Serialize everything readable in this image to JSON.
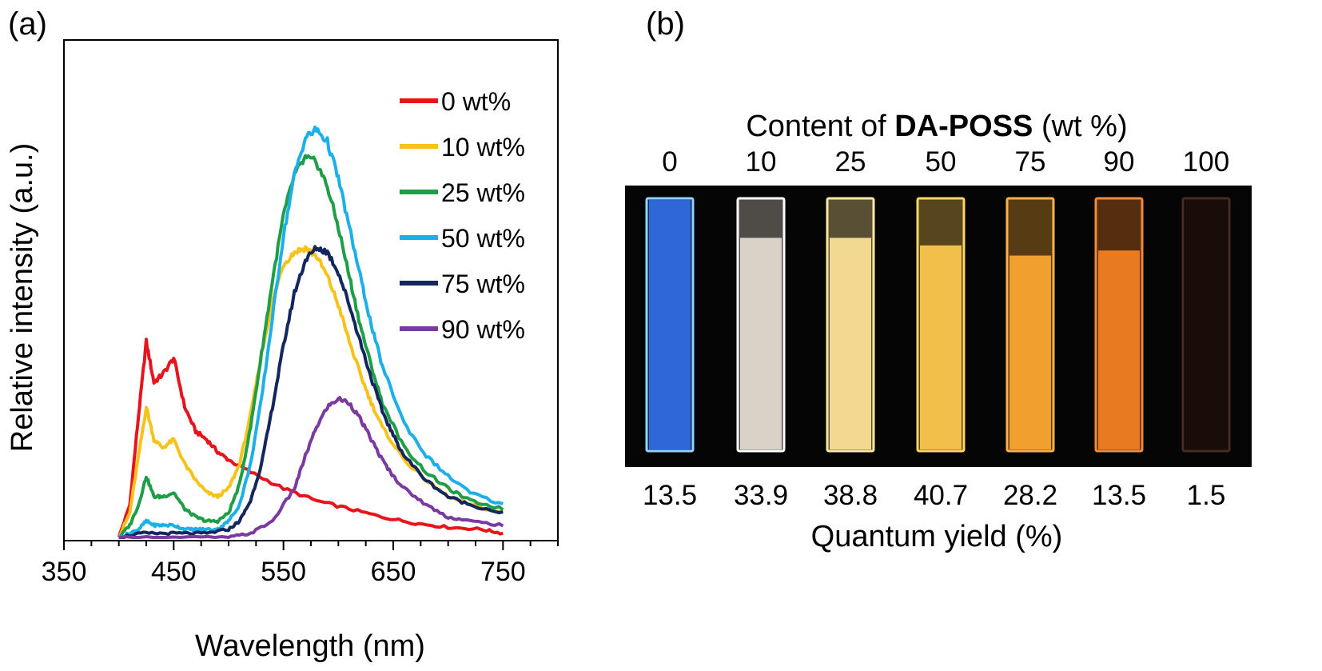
{
  "panel_a": {
    "label": "(a)"
  },
  "panel_b": {
    "label": "(b)",
    "content_label_prefix": "Content of ",
    "content_label_bold": "DA-POSS",
    "content_label_suffix": " (wt %)",
    "quantum_yield_label": "Quantum yield (%)",
    "samples": [
      {
        "content": "0",
        "yield": "13.5",
        "glow": "#2f66d8",
        "frame": "#8fd3ff",
        "fill_fraction": 1.0
      },
      {
        "content": "10",
        "yield": "33.9",
        "glow": "#d9d2c6",
        "frame": "#ffffff",
        "fill_fraction": 0.85
      },
      {
        "content": "25",
        "yield": "38.8",
        "glow": "#f3d98f",
        "frame": "#ffe9a0",
        "fill_fraction": 0.85
      },
      {
        "content": "50",
        "yield": "40.7",
        "glow": "#f2bf4a",
        "frame": "#ffd568",
        "fill_fraction": 0.82
      },
      {
        "content": "75",
        "yield": "28.2",
        "glow": "#f0a02f",
        "frame": "#ffb24a",
        "fill_fraction": 0.78
      },
      {
        "content": "90",
        "yield": "13.5",
        "glow": "#e87a22",
        "frame": "#f28a3a",
        "fill_fraction": 0.8
      },
      {
        "content": "100",
        "yield": "1.5",
        "glow": "#1a0d08",
        "frame": "#4a2a22",
        "fill_fraction": 1.0
      }
    ]
  },
  "chart_data": {
    "type": "line",
    "title": "",
    "xlabel": "Wavelength (nm)",
    "ylabel": "Relative intensity (a.u.)",
    "xlim": [
      350,
      800
    ],
    "ylim": [
      0,
      1.0
    ],
    "xticks": [
      "350",
      "450",
      "550",
      "650",
      "750"
    ],
    "xtick_values": [
      350,
      450,
      550,
      650,
      750
    ],
    "legend_position": "top-right",
    "y_tick_labels": false,
    "series": [
      {
        "name": "0 wt%",
        "color": "#e8141c",
        "x": [
          400,
          410,
          418,
          425,
          432,
          440,
          450,
          460,
          470,
          480,
          490,
          500,
          520,
          550,
          580,
          610,
          640,
          670,
          700,
          730,
          750
        ],
        "y": [
          0.0,
          0.08,
          0.3,
          0.48,
          0.38,
          0.4,
          0.44,
          0.32,
          0.26,
          0.24,
          0.21,
          0.19,
          0.16,
          0.12,
          0.09,
          0.07,
          0.05,
          0.035,
          0.025,
          0.02,
          0.01
        ]
      },
      {
        "name": "10 wt%",
        "color": "#f7c21a",
        "x": [
          400,
          410,
          418,
          425,
          432,
          440,
          450,
          460,
          470,
          480,
          490,
          500,
          510,
          520,
          530,
          540,
          550,
          560,
          570,
          580,
          590,
          600,
          610,
          620,
          630,
          640,
          660,
          680,
          700,
          720,
          750
        ],
        "y": [
          0.0,
          0.06,
          0.2,
          0.32,
          0.24,
          0.22,
          0.24,
          0.18,
          0.14,
          0.11,
          0.1,
          0.12,
          0.18,
          0.3,
          0.45,
          0.58,
          0.67,
          0.7,
          0.71,
          0.69,
          0.64,
          0.57,
          0.48,
          0.4,
          0.33,
          0.27,
          0.19,
          0.14,
          0.1,
          0.08,
          0.06
        ]
      },
      {
        "name": "25 wt%",
        "color": "#1e9e46",
        "x": [
          400,
          410,
          418,
          425,
          432,
          440,
          450,
          460,
          470,
          480,
          490,
          500,
          510,
          520,
          530,
          540,
          550,
          560,
          570,
          580,
          590,
          600,
          610,
          620,
          630,
          640,
          660,
          680,
          700,
          720,
          750
        ],
        "y": [
          0.0,
          0.03,
          0.08,
          0.15,
          0.1,
          0.1,
          0.11,
          0.07,
          0.05,
          0.04,
          0.04,
          0.06,
          0.13,
          0.27,
          0.45,
          0.63,
          0.79,
          0.89,
          0.93,
          0.92,
          0.86,
          0.76,
          0.64,
          0.52,
          0.42,
          0.33,
          0.22,
          0.16,
          0.12,
          0.09,
          0.07
        ]
      },
      {
        "name": "50 wt%",
        "color": "#1db0e8",
        "x": [
          400,
          410,
          418,
          425,
          432,
          440,
          450,
          460,
          470,
          480,
          490,
          500,
          510,
          520,
          530,
          540,
          550,
          560,
          570,
          580,
          590,
          600,
          610,
          620,
          630,
          640,
          660,
          680,
          700,
          720,
          750
        ],
        "y": [
          0.0,
          0.01,
          0.02,
          0.04,
          0.03,
          0.03,
          0.03,
          0.02,
          0.02,
          0.02,
          0.02,
          0.04,
          0.08,
          0.18,
          0.34,
          0.54,
          0.74,
          0.89,
          0.98,
          1.0,
          0.97,
          0.88,
          0.76,
          0.64,
          0.52,
          0.42,
          0.28,
          0.2,
          0.15,
          0.11,
          0.08
        ]
      },
      {
        "name": "75 wt%",
        "color": "#13265e",
        "x": [
          400,
          420,
          440,
          460,
          480,
          500,
          510,
          520,
          530,
          540,
          550,
          560,
          570,
          580,
          590,
          600,
          610,
          620,
          630,
          640,
          650,
          660,
          680,
          700,
          720,
          750
        ],
        "y": [
          0.0,
          0.01,
          0.01,
          0.01,
          0.01,
          0.02,
          0.04,
          0.09,
          0.18,
          0.32,
          0.47,
          0.6,
          0.68,
          0.71,
          0.7,
          0.65,
          0.57,
          0.48,
          0.39,
          0.31,
          0.25,
          0.2,
          0.14,
          0.1,
          0.08,
          0.06
        ]
      },
      {
        "name": "90 wt%",
        "color": "#7b3aa0",
        "x": [
          400,
          450,
          500,
          520,
          540,
          560,
          570,
          580,
          590,
          600,
          610,
          620,
          630,
          640,
          650,
          660,
          680,
          700,
          720,
          750
        ],
        "y": [
          0.0,
          0.0,
          0.0,
          0.01,
          0.04,
          0.12,
          0.2,
          0.27,
          0.32,
          0.34,
          0.33,
          0.29,
          0.24,
          0.19,
          0.15,
          0.12,
          0.08,
          0.05,
          0.04,
          0.03
        ]
      }
    ]
  }
}
